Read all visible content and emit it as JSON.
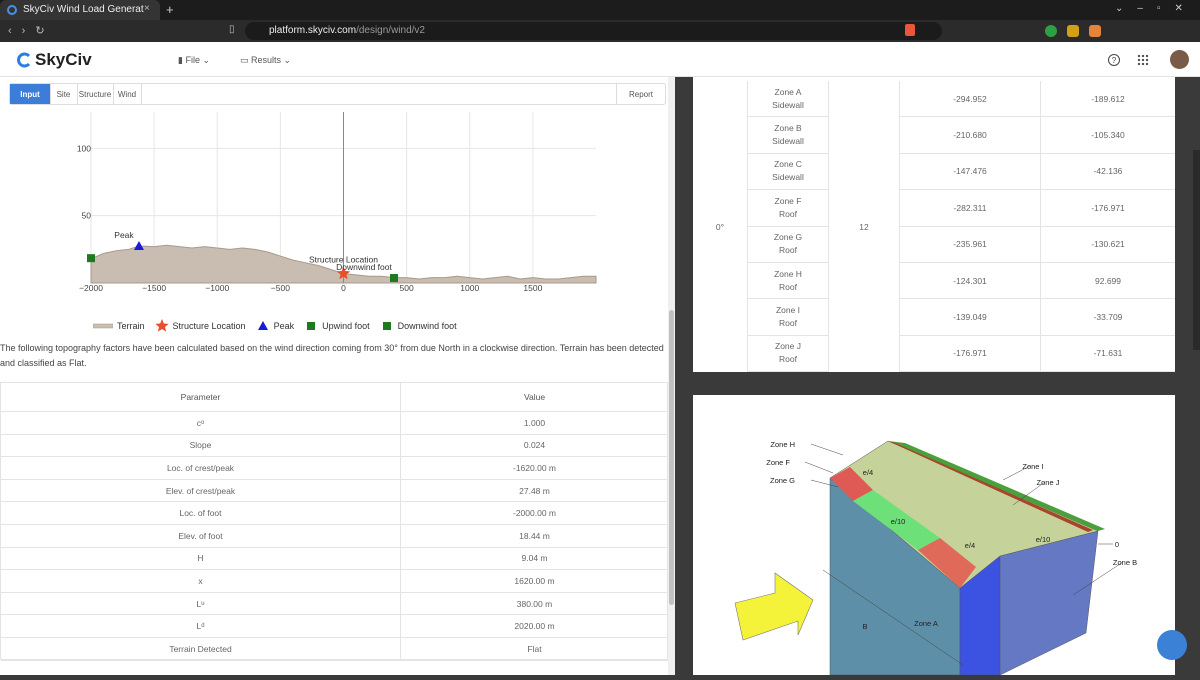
{
  "browser": {
    "tab_title": "SkyCiv Wind Load Generat",
    "url_host": "platform.skyciv.com",
    "url_path": "/design/wind/v2"
  },
  "app": {
    "brand": "SkyCiv",
    "menu": [
      "File",
      "Results"
    ]
  },
  "tabs": {
    "items": [
      "Input",
      "Site",
      "Structure",
      "Wind"
    ],
    "active": 0,
    "report": "Report"
  },
  "chart_data": {
    "type": "area",
    "xlim": [
      -2000,
      2000
    ],
    "ylim": [
      0,
      127
    ],
    "xticks": [
      {
        "value": -2000,
        "label": "−2000"
      },
      {
        "value": -1500,
        "label": "−1500"
      },
      {
        "value": -1000,
        "label": "−1000"
      },
      {
        "value": -500,
        "label": "−500"
      },
      0,
      500,
      1000,
      1500
    ],
    "yticks": [
      50,
      100
    ],
    "grid": true,
    "series": [
      {
        "name": "Terrain",
        "type": "area",
        "color": "#c9bcb0",
        "x": [
          -2000,
          -1900,
          -1800,
          -1700,
          -1620,
          -1500,
          -1400,
          -1300,
          -1200,
          -1100,
          -1000,
          -900,
          -800,
          -700,
          -600,
          -500,
          -400,
          -300,
          -200,
          -100,
          0,
          100,
          200,
          300,
          400,
          500,
          600,
          700,
          800,
          900,
          1000,
          1100,
          1200,
          1300,
          1400,
          1500,
          1600,
          1700,
          1800,
          1900,
          2000
        ],
        "values": [
          18,
          22,
          24,
          25,
          27.5,
          27,
          28,
          27,
          26,
          27,
          26,
          25,
          26,
          25,
          23,
          20,
          17,
          15,
          13,
          10,
          7,
          6,
          5,
          5,
          4,
          4,
          3,
          4,
          4,
          5,
          4,
          3,
          4,
          5,
          3,
          4,
          3,
          3,
          4,
          5,
          5
        ]
      },
      {
        "name": "Structure Location",
        "type": "scatter",
        "marker": "star",
        "color": "#e8502a",
        "label": "Structure Location",
        "x": [
          0
        ],
        "values": [
          7
        ]
      },
      {
        "name": "Peak",
        "type": "scatter",
        "marker": "triangle",
        "color": "#1a1ad6",
        "label": "Peak",
        "x": [
          -1620
        ],
        "values": [
          27.48
        ]
      },
      {
        "name": "Upwind foot",
        "type": "scatter",
        "marker": "square",
        "color": "#1f7a1f",
        "x": [
          -2000
        ],
        "values": [
          18.44
        ]
      },
      {
        "name": "Downwind foot",
        "type": "scatter",
        "marker": "square",
        "color": "#1f7a1f",
        "label": "Downwind foot",
        "x": [
          400
        ],
        "values": [
          3.7
        ]
      }
    ]
  },
  "description": "The following topography factors have been calculated based on the wind direction coming from 30° from due North in a clockwise direction. Terrain has been detected and classified as Flat.",
  "parameters_table": {
    "headers": [
      "Parameter",
      "Value"
    ],
    "rows": [
      {
        "parameter": "c",
        "parameter_sub": "o",
        "value": "1.000"
      },
      {
        "parameter": "Slope",
        "value": "0.024"
      },
      {
        "parameter": "Loc. of crest/peak",
        "value": "-1620.00 m"
      },
      {
        "parameter": "Elev. of crest/peak",
        "value": "27.48 m"
      },
      {
        "parameter": "Loc. of foot",
        "value": "-2000.00 m"
      },
      {
        "parameter": "Elev. of foot",
        "value": "18.44 m"
      },
      {
        "parameter": "H",
        "value": "9.04 m"
      },
      {
        "parameter": "x",
        "value": "1620.00 m"
      },
      {
        "parameter": "L",
        "parameter_sub": "u",
        "value": "380.00 m"
      },
      {
        "parameter": "L",
        "parameter_sub": "d",
        "value": "2020.00 m"
      },
      {
        "parameter": "Terrain Detected",
        "value": "Flat"
      }
    ]
  },
  "pressure_table": {
    "direction": "0°",
    "value": "12",
    "rows": [
      {
        "zone": "Zone A",
        "surface": "Sidewall",
        "values": [
          "-294.952",
          "-189.612"
        ]
      },
      {
        "zone": "Zone B",
        "surface": "Sidewall",
        "values": [
          "-210.680",
          "-105.340"
        ]
      },
      {
        "zone": "Zone C",
        "surface": "Sidewall",
        "values": [
          "-147.476",
          "-42.136"
        ]
      },
      {
        "zone": "Zone F",
        "surface": "Roof",
        "values": [
          "-282.311",
          "-176.971"
        ]
      },
      {
        "zone": "Zone G",
        "surface": "Roof",
        "values": [
          "-235.961",
          "-130.621"
        ]
      },
      {
        "zone": "Zone H",
        "surface": "Roof",
        "values": [
          "-124.301",
          "92.699"
        ]
      },
      {
        "zone": "Zone I",
        "surface": "Roof",
        "values": [
          "-139.049",
          "-33.709"
        ]
      },
      {
        "zone": "Zone J",
        "surface": "Roof",
        "values": [
          "-176.971",
          "-71.631"
        ]
      }
    ]
  },
  "diagram": {
    "labels": [
      "Zone H",
      "Zone F",
      "Zone G",
      "e/4",
      "e/10",
      "e/4",
      "e/10",
      "Zone I",
      "Zone J",
      "0",
      "Zone B",
      "Zone A",
      "B"
    ]
  }
}
